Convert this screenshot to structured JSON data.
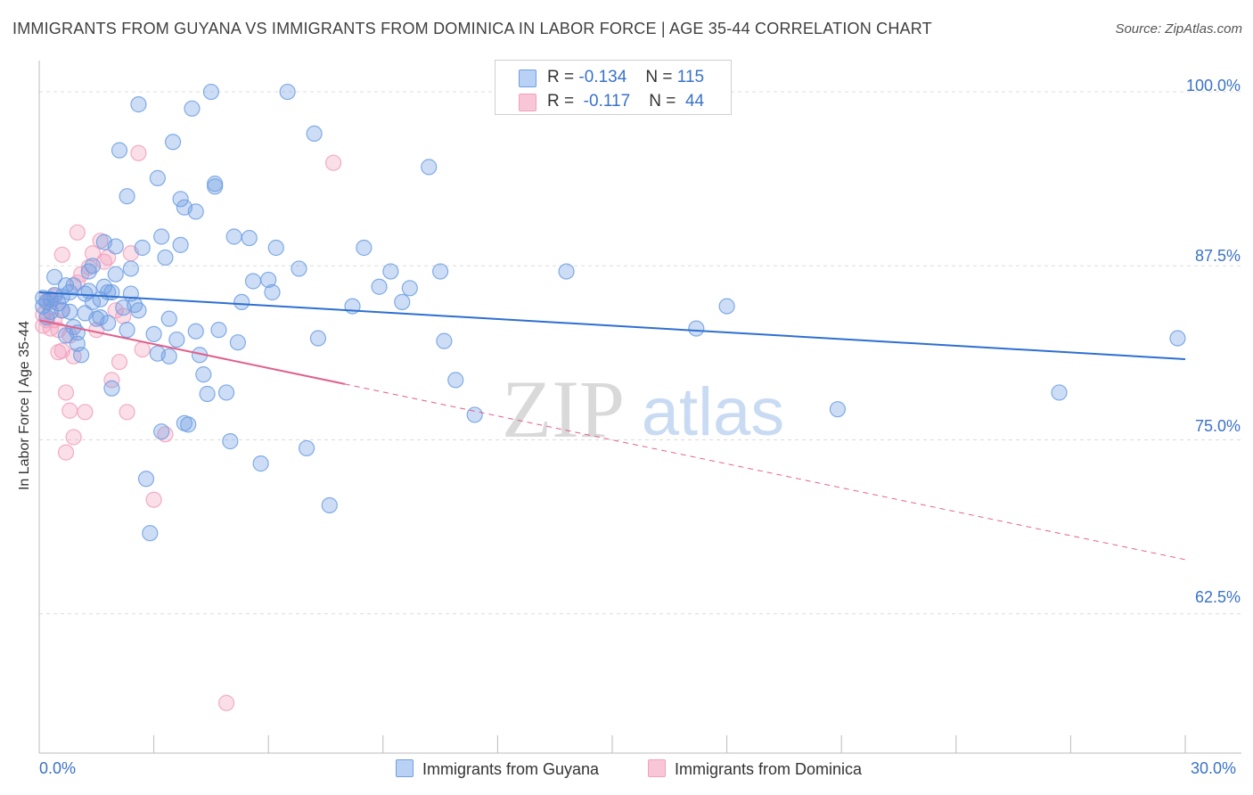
{
  "title": "IMMIGRANTS FROM GUYANA VS IMMIGRANTS FROM DOMINICA IN LABOR FORCE | AGE 35-44 CORRELATION CHART",
  "source": "Source: ZipAtlas.com",
  "watermark": {
    "zip": "ZIP",
    "atlas": "atlas"
  },
  "legend": {
    "r_label": "R =",
    "n_label": "N =",
    "rows": [
      {
        "r": "-0.134",
        "n": "115"
      },
      {
        "r": "-0.117",
        "n": "44"
      }
    ]
  },
  "bottom_legend": [
    "Immigrants from Guyana",
    "Immigrants from Dominica"
  ],
  "chart_data": {
    "type": "scatter",
    "xlabel": "",
    "ylabel": "In Labor Force | Age 35-44",
    "xlim": [
      0,
      30
    ],
    "ylim": [
      52.5,
      102.5
    ],
    "x_tick_labels": [
      {
        "value": 0,
        "label": "0.0%"
      },
      {
        "value": 30,
        "label": "30.0%"
      }
    ],
    "y_tick_labels": [
      {
        "value": 100,
        "label": "100.0%"
      },
      {
        "value": 87.5,
        "label": "87.5%"
      },
      {
        "value": 75,
        "label": "75.0%"
      },
      {
        "value": 62.5,
        "label": "62.5%"
      }
    ],
    "colors": {
      "guyana": "#6f9fe3",
      "guyana_line": "#2e6fd0",
      "dominica": "#f2a0bc",
      "dominica_line": "#e0608c"
    },
    "series": [
      {
        "name": "Immigrants from Guyana",
        "r": -0.134,
        "n": 115,
        "trend": {
          "x0": 0,
          "y0": 85.6,
          "x1": 30,
          "y1": 80.8,
          "solid_to": 30
        },
        "points": [
          [
            0.1,
            85.2
          ],
          [
            0.1,
            84.6
          ],
          [
            0.2,
            83.8
          ],
          [
            0.2,
            84.9
          ],
          [
            0.3,
            85.1
          ],
          [
            0.3,
            84.2
          ],
          [
            0.4,
            85.4
          ],
          [
            0.4,
            86.7
          ],
          [
            0.5,
            84.8
          ],
          [
            0.6,
            85.3
          ],
          [
            0.6,
            84.3
          ],
          [
            0.7,
            86.1
          ],
          [
            0.7,
            82.5
          ],
          [
            0.8,
            84.2
          ],
          [
            0.8,
            85.6
          ],
          [
            0.9,
            86.1
          ],
          [
            0.9,
            83.1
          ],
          [
            1.0,
            81.9
          ],
          [
            1.0,
            82.7
          ],
          [
            1.1,
            81.1
          ],
          [
            1.2,
            85.5
          ],
          [
            1.2,
            84.1
          ],
          [
            1.3,
            85.7
          ],
          [
            1.3,
            87.1
          ],
          [
            1.4,
            87.5
          ],
          [
            1.4,
            84.9
          ],
          [
            1.5,
            83.7
          ],
          [
            1.6,
            83.8
          ],
          [
            1.6,
            85.1
          ],
          [
            1.7,
            86.0
          ],
          [
            1.7,
            89.2
          ],
          [
            1.8,
            85.6
          ],
          [
            1.8,
            83.4
          ],
          [
            1.9,
            78.7
          ],
          [
            1.9,
            85.6
          ],
          [
            2.0,
            86.9
          ],
          [
            2.0,
            88.9
          ],
          [
            2.1,
            95.8
          ],
          [
            2.2,
            84.5
          ],
          [
            2.3,
            82.9
          ],
          [
            2.3,
            92.5
          ],
          [
            2.4,
            87.3
          ],
          [
            2.4,
            85.5
          ],
          [
            2.5,
            84.7
          ],
          [
            2.6,
            84.3
          ],
          [
            2.6,
            99.1
          ],
          [
            2.7,
            88.8
          ],
          [
            2.8,
            72.2
          ],
          [
            2.9,
            68.3
          ],
          [
            3.0,
            82.6
          ],
          [
            3.1,
            81.2
          ],
          [
            3.1,
            93.8
          ],
          [
            3.2,
            75.6
          ],
          [
            3.2,
            89.6
          ],
          [
            3.3,
            88.1
          ],
          [
            3.4,
            83.7
          ],
          [
            3.4,
            81.0
          ],
          [
            3.5,
            96.4
          ],
          [
            3.6,
            82.2
          ],
          [
            3.7,
            92.3
          ],
          [
            3.7,
            89.0
          ],
          [
            3.8,
            76.2
          ],
          [
            3.8,
            91.7
          ],
          [
            3.9,
            76.1
          ],
          [
            4.0,
            98.8
          ],
          [
            4.1,
            82.8
          ],
          [
            4.1,
            91.4
          ],
          [
            4.2,
            81.1
          ],
          [
            4.3,
            79.7
          ],
          [
            4.4,
            78.3
          ],
          [
            4.5,
            100.0
          ],
          [
            4.6,
            93.4
          ],
          [
            4.6,
            93.2
          ],
          [
            4.7,
            82.9
          ],
          [
            4.9,
            78.4
          ],
          [
            5.0,
            74.9
          ],
          [
            5.1,
            89.6
          ],
          [
            5.2,
            82.0
          ],
          [
            5.3,
            84.9
          ],
          [
            5.5,
            89.5
          ],
          [
            5.6,
            86.4
          ],
          [
            5.8,
            73.3
          ],
          [
            6.0,
            86.5
          ],
          [
            6.1,
            85.6
          ],
          [
            6.2,
            88.8
          ],
          [
            6.5,
            100.0
          ],
          [
            6.8,
            87.3
          ],
          [
            7.0,
            74.4
          ],
          [
            7.2,
            97.0
          ],
          [
            7.3,
            82.3
          ],
          [
            7.6,
            70.3
          ],
          [
            8.2,
            84.6
          ],
          [
            8.5,
            88.8
          ],
          [
            8.9,
            86.0
          ],
          [
            9.2,
            87.1
          ],
          [
            9.5,
            84.9
          ],
          [
            9.7,
            85.9
          ],
          [
            10.2,
            94.6
          ],
          [
            10.5,
            87.1
          ],
          [
            10.6,
            82.1
          ],
          [
            10.9,
            79.3
          ],
          [
            11.4,
            76.8
          ],
          [
            13.8,
            87.1
          ],
          [
            17.2,
            83.0
          ],
          [
            18.0,
            84.6
          ],
          [
            20.9,
            77.2
          ],
          [
            26.7,
            78.4
          ],
          [
            29.8,
            82.3
          ]
        ]
      },
      {
        "name": "Immigrants from Dominica",
        "r": -0.117,
        "n": 44,
        "trend": {
          "x0": 0,
          "y0": 83.6,
          "x1": 30,
          "y1": 66.4,
          "solid_to": 8.0
        },
        "points": [
          [
            0.1,
            84.0
          ],
          [
            0.1,
            83.2
          ],
          [
            0.2,
            85.0
          ],
          [
            0.2,
            83.6
          ],
          [
            0.3,
            84.9
          ],
          [
            0.3,
            83.0
          ],
          [
            0.4,
            85.3
          ],
          [
            0.4,
            83.6
          ],
          [
            0.5,
            82.9
          ],
          [
            0.5,
            81.3
          ],
          [
            0.6,
            81.4
          ],
          [
            0.6,
            88.3
          ],
          [
            0.6,
            84.3
          ],
          [
            0.7,
            78.4
          ],
          [
            0.7,
            74.1
          ],
          [
            0.8,
            77.1
          ],
          [
            0.8,
            82.5
          ],
          [
            0.9,
            75.2
          ],
          [
            0.9,
            81.0
          ],
          [
            1.0,
            86.3
          ],
          [
            1.0,
            89.9
          ],
          [
            1.1,
            86.9
          ],
          [
            1.2,
            77.0
          ],
          [
            1.3,
            87.4
          ],
          [
            1.4,
            88.4
          ],
          [
            1.5,
            82.9
          ],
          [
            1.6,
            89.3
          ],
          [
            1.7,
            87.8
          ],
          [
            1.8,
            88.1
          ],
          [
            1.9,
            79.3
          ],
          [
            2.0,
            84.3
          ],
          [
            2.1,
            80.6
          ],
          [
            2.2,
            83.9
          ],
          [
            2.3,
            77.0
          ],
          [
            2.4,
            88.4
          ],
          [
            2.6,
            95.6
          ],
          [
            2.7,
            81.5
          ],
          [
            3.0,
            70.7
          ],
          [
            3.3,
            75.4
          ],
          [
            4.9,
            56.1
          ],
          [
            7.7,
            94.9
          ]
        ]
      }
    ]
  }
}
